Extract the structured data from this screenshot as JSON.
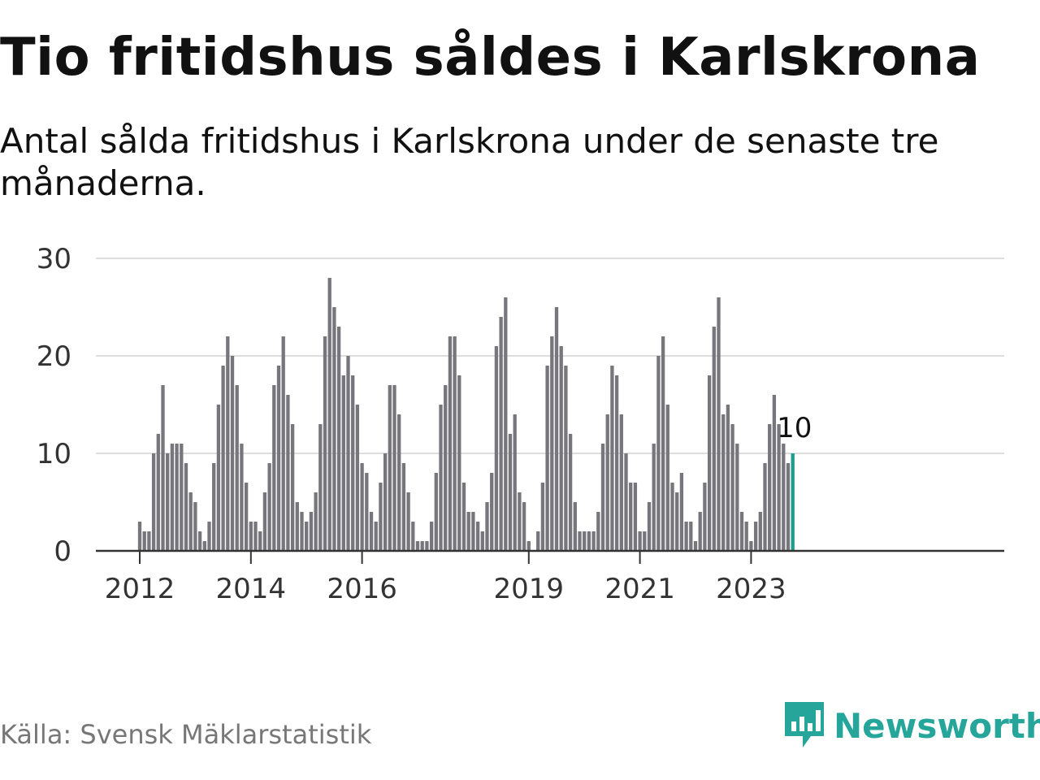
{
  "title": "Tio fritidshus såldes i Karlskrona",
  "subtitle": "Antal sålda fritidshus i Karlskrona under de senaste tre månaderna.",
  "source": "Källa: Svensk Mäklarstatistik",
  "brand": {
    "name": "Newsworthy",
    "logo_icon": "newsworthy-logo-icon",
    "color": "#26a69a"
  },
  "colors": {
    "bar": "#77767c",
    "highlight": "#1d9e8c",
    "grid": "#dddddd",
    "axis": "#333333"
  },
  "chart_data": {
    "type": "bar",
    "start": "2012-01",
    "frequency": "monthly",
    "ylim": [
      0,
      30
    ],
    "yticks": [
      "0",
      "10",
      "20",
      "30"
    ],
    "xticks": [
      {
        "label": "2012",
        "date": "2012-01"
      },
      {
        "label": "2014",
        "date": "2014-01"
      },
      {
        "label": "2016",
        "date": "2016-01"
      },
      {
        "label": "2019",
        "date": "2019-01"
      },
      {
        "label": "2021",
        "date": "2021-01"
      },
      {
        "label": "2023",
        "date": "2023-01"
      }
    ],
    "values": [
      3,
      2,
      2,
      10,
      12,
      17,
      10,
      11,
      11,
      11,
      9,
      6,
      5,
      2,
      1,
      3,
      9,
      15,
      19,
      22,
      20,
      17,
      11,
      7,
      3,
      3,
      2,
      6,
      9,
      17,
      19,
      22,
      16,
      13,
      5,
      4,
      3,
      4,
      6,
      13,
      22,
      28,
      25,
      23,
      18,
      20,
      18,
      15,
      9,
      8,
      4,
      3,
      7,
      10,
      17,
      17,
      14,
      9,
      6,
      3,
      1,
      1,
      1,
      3,
      8,
      15,
      17,
      22,
      22,
      18,
      7,
      4,
      4,
      3,
      2,
      5,
      8,
      21,
      24,
      26,
      12,
      14,
      6,
      5,
      1,
      0,
      2,
      7,
      19,
      22,
      25,
      21,
      19,
      12,
      5,
      2,
      2,
      2,
      2,
      4,
      11,
      14,
      19,
      18,
      14,
      10,
      7,
      7,
      2,
      2,
      5,
      11,
      20,
      22,
      15,
      7,
      6,
      8,
      3,
      3,
      1,
      4,
      7,
      18,
      23,
      26,
      14,
      15,
      13,
      11,
      4,
      3,
      1,
      3,
      4,
      9,
      13,
      16,
      13,
      11,
      9,
      10
    ],
    "highlight": {
      "date": "2023-10",
      "value": 10,
      "label": "10"
    }
  }
}
